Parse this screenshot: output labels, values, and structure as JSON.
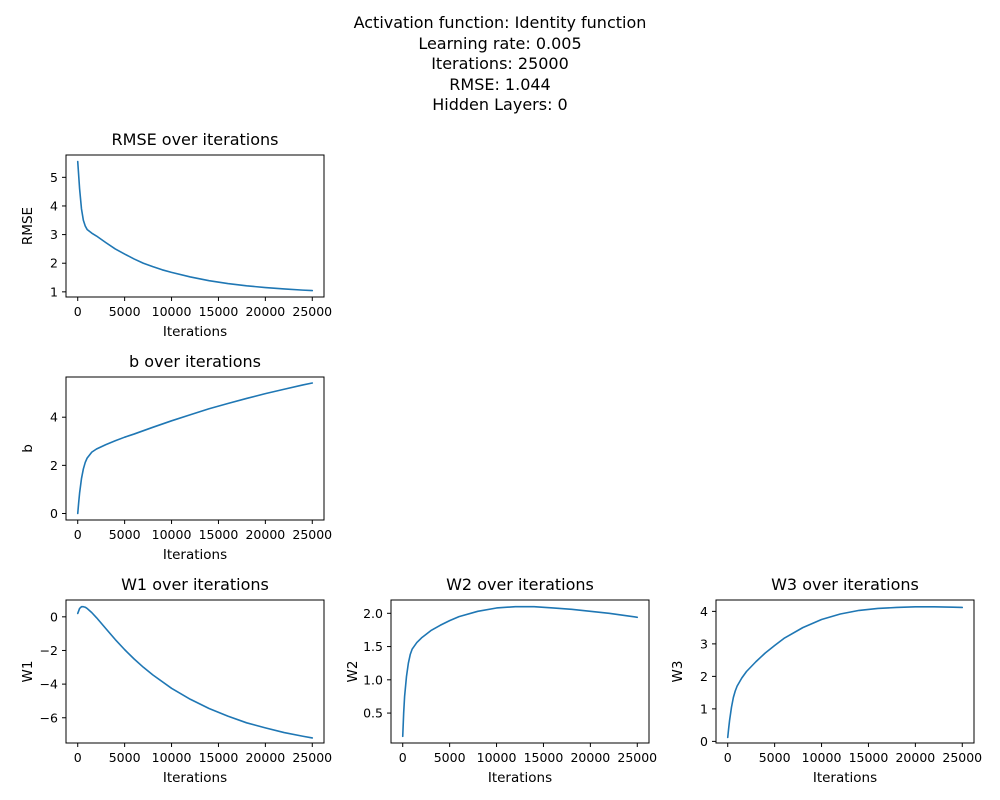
{
  "figure": {
    "title_lines": [
      "Activation function: Identity function",
      "Learning rate: 0.005",
      "Iterations: 25000",
      "RMSE: 1.044",
      "Hidden Layers: 0"
    ]
  },
  "colors": {
    "line": "#1f77b4",
    "axes": "#000000"
  },
  "chart_data": [
    {
      "id": "rmse",
      "type": "line",
      "title": "RMSE over iterations",
      "xlabel": "Iterations",
      "ylabel": "RMSE",
      "xlim": [
        -1250,
        26250
      ],
      "ylim": [
        0.82,
        5.78
      ],
      "xticks": [
        0,
        5000,
        10000,
        15000,
        20000,
        25000
      ],
      "yticks": [
        1,
        2,
        3,
        4,
        5
      ],
      "x": [
        0,
        200,
        400,
        600,
        800,
        1000,
        1500,
        2000,
        3000,
        4000,
        5000,
        6000,
        7000,
        8000,
        9000,
        10000,
        12000,
        14000,
        16000,
        18000,
        20000,
        22000,
        24000,
        25000
      ],
      "y": [
        5.55,
        4.6,
        3.9,
        3.5,
        3.3,
        3.18,
        3.05,
        2.95,
        2.72,
        2.5,
        2.32,
        2.15,
        2.0,
        1.88,
        1.77,
        1.68,
        1.52,
        1.39,
        1.29,
        1.21,
        1.15,
        1.1,
        1.06,
        1.044
      ],
      "grid": false
    },
    {
      "id": "b",
      "type": "line",
      "title": "b over iterations",
      "xlabel": "Iterations",
      "ylabel": "b",
      "xlim": [
        -1250,
        26250
      ],
      "ylim": [
        -0.27,
        5.67
      ],
      "xticks": [
        0,
        5000,
        10000,
        15000,
        20000,
        25000
      ],
      "yticks": [
        0,
        2,
        4
      ],
      "x": [
        0,
        100,
        200,
        400,
        600,
        800,
        1000,
        1500,
        2000,
        3000,
        4000,
        5000,
        6000,
        8000,
        10000,
        12000,
        14000,
        16000,
        18000,
        20000,
        22000,
        24000,
        25000
      ],
      "y": [
        0.0,
        0.45,
        0.85,
        1.45,
        1.85,
        2.12,
        2.3,
        2.55,
        2.68,
        2.86,
        3.02,
        3.17,
        3.3,
        3.58,
        3.85,
        4.1,
        4.35,
        4.57,
        4.78,
        4.98,
        5.16,
        5.34,
        5.42
      ],
      "grid": false
    },
    {
      "id": "w1",
      "type": "line",
      "title": "W1 over iterations",
      "xlabel": "Iterations",
      "ylabel": "W1",
      "xlim": [
        -1250,
        26250
      ],
      "ylim": [
        -7.5,
        1.0
      ],
      "xticks": [
        0,
        5000,
        10000,
        15000,
        20000,
        25000
      ],
      "yticks": [
        -6,
        -4,
        -2,
        0
      ],
      "x": [
        0,
        200,
        400,
        600,
        800,
        1000,
        1500,
        2000,
        3000,
        4000,
        5000,
        6000,
        7000,
        8000,
        10000,
        12000,
        14000,
        16000,
        18000,
        20000,
        22000,
        24000,
        25000
      ],
      "y": [
        0.2,
        0.5,
        0.6,
        0.6,
        0.57,
        0.5,
        0.25,
        -0.05,
        -0.7,
        -1.35,
        -1.95,
        -2.5,
        -3.0,
        -3.45,
        -4.25,
        -4.9,
        -5.45,
        -5.9,
        -6.3,
        -6.6,
        -6.88,
        -7.1,
        -7.2
      ],
      "grid": false
    },
    {
      "id": "w2",
      "type": "line",
      "title": "W2 over iterations",
      "xlabel": "Iterations",
      "ylabel": "W2",
      "xlim": [
        -1250,
        26250
      ],
      "ylim": [
        0.05,
        2.2
      ],
      "xticks": [
        0,
        5000,
        10000,
        15000,
        20000,
        25000
      ],
      "yticks": [
        0.5,
        1.0,
        1.5,
        2.0
      ],
      "ytick_labels": [
        "0.5",
        "1.0",
        "1.5",
        "2.0"
      ],
      "x": [
        0,
        100,
        200,
        400,
        600,
        800,
        1000,
        1500,
        2000,
        3000,
        4000,
        5000,
        6000,
        8000,
        10000,
        12000,
        13000,
        14000,
        16000,
        18000,
        20000,
        22000,
        24000,
        25000
      ],
      "y": [
        0.15,
        0.5,
        0.75,
        1.05,
        1.25,
        1.38,
        1.46,
        1.56,
        1.63,
        1.74,
        1.82,
        1.89,
        1.95,
        2.03,
        2.08,
        2.1,
        2.1,
        2.1,
        2.08,
        2.06,
        2.03,
        2.0,
        1.96,
        1.94
      ],
      "grid": false
    },
    {
      "id": "w3",
      "type": "line",
      "title": "W3 over iterations",
      "xlabel": "Iterations",
      "ylabel": "W3",
      "xlim": [
        -1250,
        26250
      ],
      "ylim": [
        -0.05,
        4.35
      ],
      "xticks": [
        0,
        5000,
        10000,
        15000,
        20000,
        25000
      ],
      "yticks": [
        0,
        1,
        2,
        3,
        4
      ],
      "x": [
        0,
        100,
        200,
        400,
        600,
        800,
        1000,
        1500,
        2000,
        3000,
        4000,
        5000,
        6000,
        8000,
        10000,
        12000,
        14000,
        16000,
        18000,
        20000,
        22000,
        24000,
        25000
      ],
      "y": [
        0.12,
        0.4,
        0.65,
        1.05,
        1.35,
        1.55,
        1.7,
        1.95,
        2.15,
        2.45,
        2.72,
        2.95,
        3.17,
        3.5,
        3.75,
        3.92,
        4.03,
        4.09,
        4.12,
        4.14,
        4.14,
        4.13,
        4.12
      ],
      "grid": false
    }
  ]
}
